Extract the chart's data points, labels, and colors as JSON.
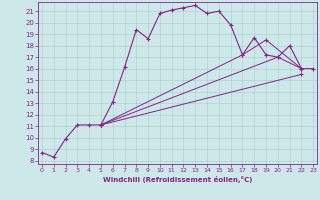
{
  "xlabel": "Windchill (Refroidissement éolien,°C)",
  "bg_color": "#cde8e8",
  "line_color": "#882288",
  "xlim_min": -0.3,
  "xlim_max": 23.3,
  "ylim_min": 7.7,
  "ylim_max": 21.8,
  "yticks": [
    8,
    9,
    10,
    11,
    12,
    13,
    14,
    15,
    16,
    17,
    18,
    19,
    20,
    21
  ],
  "xticks": [
    0,
    1,
    2,
    3,
    4,
    5,
    6,
    7,
    8,
    9,
    10,
    11,
    12,
    13,
    14,
    15,
    16,
    17,
    18,
    19,
    20,
    21,
    22,
    23
  ],
  "main_x": [
    0,
    1,
    2,
    3,
    4,
    5,
    6,
    7,
    8,
    9,
    10,
    11,
    12,
    13,
    14,
    15,
    16,
    17,
    18,
    19,
    20,
    21,
    22,
    23
  ],
  "main_y": [
    8.7,
    8.3,
    9.9,
    11.1,
    11.1,
    11.1,
    13.1,
    16.1,
    19.4,
    18.6,
    20.8,
    21.1,
    21.3,
    21.5,
    20.8,
    21.0,
    19.8,
    17.2,
    18.7,
    17.2,
    17.0,
    18.0,
    16.0,
    16.0
  ],
  "line2_x": [
    5,
    17,
    19,
    22
  ],
  "line2_y": [
    11.1,
    17.2,
    18.5,
    16.0
  ],
  "line3_x": [
    5,
    20,
    22
  ],
  "line3_y": [
    11.1,
    17.0,
    16.0
  ],
  "line4_x": [
    5,
    22
  ],
  "line4_y": [
    11.1,
    15.5
  ]
}
